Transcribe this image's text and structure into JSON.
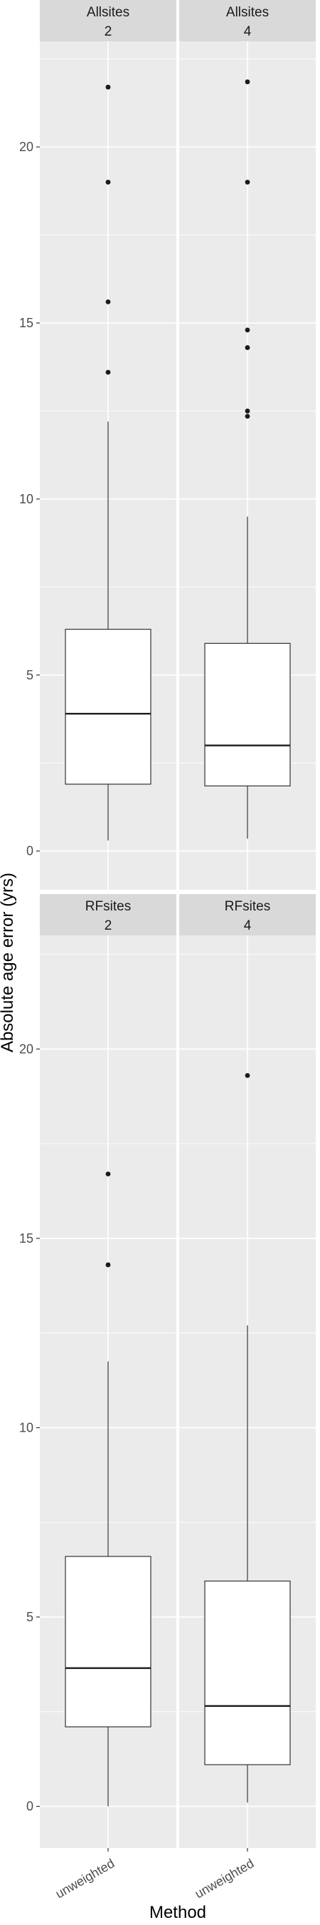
{
  "chart_data": {
    "type": "box",
    "xlabel": "Method",
    "ylabel": "Absolute age error (yrs)",
    "ylim": [
      -1.1,
      23.0
    ],
    "y_ticks": [
      0,
      5,
      10,
      15,
      20
    ],
    "y_tick_labels": [
      "0",
      "5",
      "10",
      "15",
      "20"
    ],
    "x_tick_label": "unweighted",
    "grid": true,
    "facet_rows": [
      "Allsites",
      "RFsites"
    ],
    "facet_cols": [
      "2",
      "4"
    ],
    "panels": [
      {
        "row_label": "Allsites",
        "col_label": "2",
        "category": "unweighted",
        "min": 0.3,
        "q1": 1.9,
        "median": 3.9,
        "q3": 6.3,
        "max": 12.2,
        "outliers": [
          13.6,
          15.6,
          19.0,
          21.7
        ]
      },
      {
        "row_label": "Allsites",
        "col_label": "4",
        "category": "unweighted",
        "min": 0.35,
        "q1": 1.85,
        "median": 3.0,
        "q3": 5.9,
        "max": 9.5,
        "outliers": [
          12.35,
          12.5,
          14.3,
          14.8,
          19.0,
          21.85
        ]
      },
      {
        "row_label": "RFsites",
        "col_label": "2",
        "category": "unweighted",
        "min": 0.0,
        "q1": 2.1,
        "median": 3.65,
        "q3": 6.6,
        "max": 11.75,
        "outliers": [
          14.3,
          16.7
        ]
      },
      {
        "row_label": "RFsites",
        "col_label": "4",
        "category": "unweighted",
        "min": 0.1,
        "q1": 1.1,
        "median": 2.65,
        "q3": 5.95,
        "max": 12.7,
        "outliers": [
          19.3
        ]
      }
    ]
  }
}
